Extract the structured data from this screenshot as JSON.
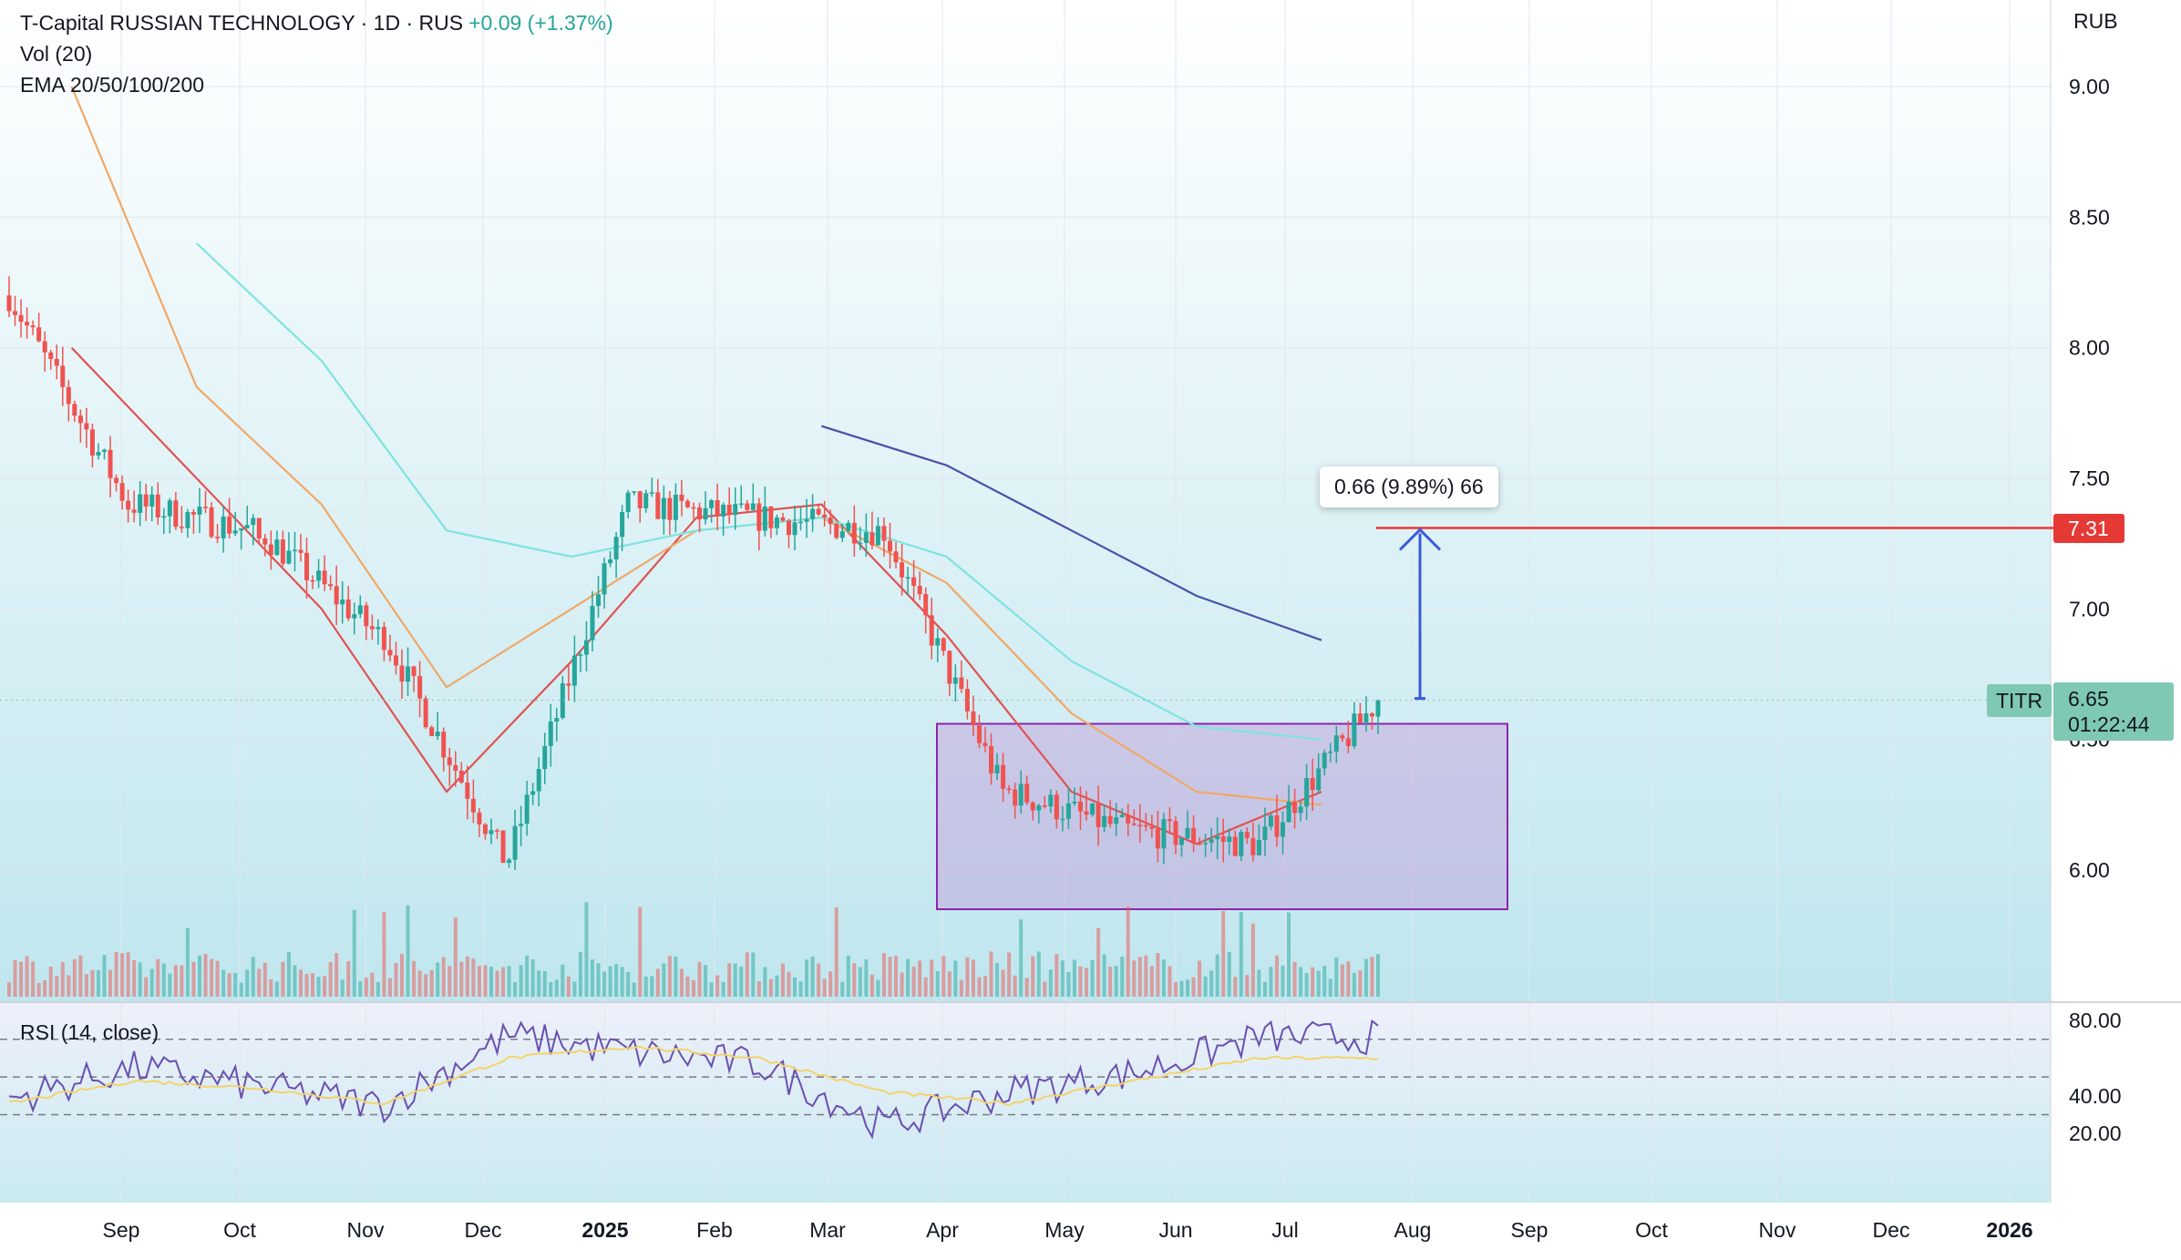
{
  "header": {
    "symbol_line": "T-Capital RUSSIAN TECHNOLOGY · 1D · RUS",
    "change": "+0.09 (+1.37%)",
    "vol_label": "Vol (20)",
    "ema_label": "EMA 20/50/100/200"
  },
  "currency": "RUB",
  "price_axis": {
    "ticks": [
      "9.00",
      "8.50",
      "8.00",
      "7.50",
      "7.00",
      "6.50",
      "6.00"
    ],
    "current_ticker": "TITR",
    "current_price": "6.65",
    "countdown": "01:22:44",
    "target_price": "7.31"
  },
  "time_axis": {
    "labels": [
      "Sep",
      "Oct",
      "Nov",
      "Dec",
      "2025",
      "Feb",
      "Mar",
      "Apr",
      "May",
      "Jun",
      "Jul",
      "Aug",
      "Sep",
      "Oct",
      "Nov",
      "Dec",
      "2026"
    ]
  },
  "measure": {
    "label": "0.66 (9.89%) 66"
  },
  "rsi": {
    "label": "RSI (14, close)",
    "ticks": [
      "80.00",
      "40.00",
      "20.00"
    ]
  },
  "colors": {
    "up": "#26a69a",
    "down": "#ef5350",
    "ema20": "#e05252",
    "ema50": "#f0a868",
    "ema100": "#7fe3e0",
    "ema200": "#4b4fa8",
    "rsi": "#6a4fb0",
    "rsi_ma": "#f3d36b",
    "box": "#8e24aa",
    "target_line": "#e53935",
    "arrow": "#3a5bd9"
  },
  "chart_data": {
    "type": "candlestick",
    "title": "T-Capital RUSSIAN TECHNOLOGY · 1D · RUS",
    "ylabel": "RUB",
    "ylim": [
      5.7,
      9.3
    ],
    "rsi_ylim": [
      10,
      90
    ],
    "ohlc_monthly": [
      {
        "period": "Sep",
        "open": 8.2,
        "high": 8.3,
        "low": 6.8,
        "close": 7.4
      },
      {
        "period": "Oct",
        "open": 7.4,
        "high": 7.9,
        "low": 7.1,
        "close": 7.3
      },
      {
        "period": "Nov",
        "open": 7.3,
        "high": 7.3,
        "low": 6.75,
        "close": 6.9
      },
      {
        "period": "Dec",
        "open": 6.9,
        "high": 6.95,
        "low": 5.9,
        "close": 6.05
      },
      {
        "period": "2025",
        "open": 6.05,
        "high": 7.8,
        "low": 6.0,
        "close": 7.4
      },
      {
        "period": "Feb",
        "open": 7.4,
        "high": 7.6,
        "low": 7.2,
        "close": 7.35
      },
      {
        "period": "Mar",
        "open": 7.35,
        "high": 7.75,
        "low": 7.2,
        "close": 7.3
      },
      {
        "period": "Apr",
        "open": 7.3,
        "high": 7.35,
        "low": 6.0,
        "close": 6.3
      },
      {
        "period": "May",
        "open": 6.3,
        "high": 6.5,
        "low": 6.0,
        "close": 6.15
      },
      {
        "period": "Jun",
        "open": 6.15,
        "high": 6.5,
        "low": 5.85,
        "close": 6.1
      },
      {
        "period": "Jul",
        "open": 6.1,
        "high": 6.7,
        "low": 5.95,
        "close": 6.65
      }
    ],
    "current_price": 6.65,
    "target_price": 7.31,
    "zones": [
      {
        "name": "upper",
        "from_date": "Apr",
        "to_date": "Sep",
        "low": 6.56,
        "high": 7.31
      },
      {
        "name": "lower",
        "from_date": "Apr",
        "to_date": "Aug",
        "low": 5.85,
        "high": 6.56
      }
    ],
    "series": [
      {
        "name": "EMA 20",
        "values": [
          8.0,
          7.5,
          7.0,
          6.3,
          6.8,
          7.35,
          7.4,
          6.9,
          6.3,
          6.1,
          6.3
        ]
      },
      {
        "name": "EMA 50",
        "values": [
          9.0,
          7.85,
          7.4,
          6.7,
          7.0,
          7.3,
          7.35,
          7.1,
          6.6,
          6.3,
          6.25
        ]
      },
      {
        "name": "EMA 100",
        "values": [
          null,
          8.4,
          7.95,
          7.3,
          7.2,
          7.3,
          7.35,
          7.2,
          6.8,
          6.55,
          6.5
        ]
      },
      {
        "name": "EMA 200",
        "values": [
          null,
          null,
          null,
          null,
          null,
          null,
          7.7,
          7.55,
          7.3,
          7.05,
          6.88
        ]
      }
    ],
    "rsi_series": [
      {
        "name": "RSI",
        "values": [
          38,
          55,
          45,
          35,
          72,
          63,
          57,
          24,
          42,
          52,
          71
        ]
      },
      {
        "name": "RSI MA",
        "values": [
          36,
          48,
          44,
          36,
          60,
          66,
          60,
          42,
          36,
          48,
          60
        ]
      }
    ],
    "rsi_levels": [
      70,
      50,
      30
    ]
  }
}
